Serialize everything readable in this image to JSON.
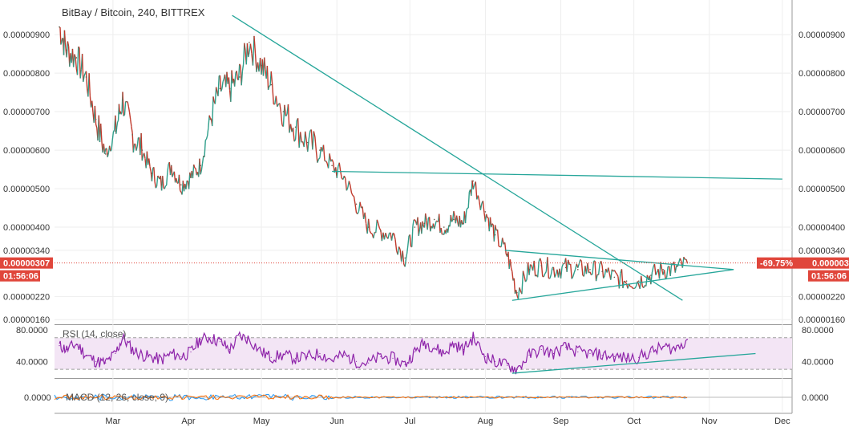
{
  "title": "BitBay / Bitcoin, 240, BITTREX",
  "colors": {
    "up": "#2e9e8a",
    "down": "#c0392b",
    "trendline": "#26a69a",
    "rsi": "#8e24aa",
    "rsi_band": "#f3e5f5",
    "price_badge": "#e0463b",
    "grid": "#eeeeee"
  },
  "chart_data": [
    {
      "type": "line",
      "name": "price",
      "title": "BitBay / Bitcoin, 240, BITTREX",
      "ylim": [
        1.5e-06,
        9.9e-06
      ],
      "y_ticks": [
        "0.00000900",
        "0.00000800",
        "0.00000700",
        "0.00000600",
        "0.00000500",
        "0.00000400",
        "0.00000340",
        "0.00000220",
        "0.00000160"
      ],
      "x_ticks": [
        "Mar",
        "Apr",
        "May",
        "Jun",
        "Jul",
        "Aug",
        "Sep",
        "Oct",
        "Nov",
        "Dec"
      ],
      "x": [
        "Feb 7",
        "Feb 10",
        "Feb 14",
        "Feb 18",
        "Feb 22",
        "Feb 26",
        "Mar 2",
        "Mar 5",
        "Mar 9",
        "Mar 13",
        "Mar 17",
        "Mar 21",
        "Mar 25",
        "Mar 29",
        "Apr 2",
        "Apr 6",
        "Apr 10",
        "Apr 14",
        "Apr 18",
        "Apr 22",
        "Apr 26",
        "May 1",
        "May 5",
        "May 10",
        "May 15",
        "May 20",
        "May 25",
        "May 30",
        "Jun 4",
        "Jun 9",
        "Jun 14",
        "Jun 19",
        "Jun 24",
        "Jun 29",
        "Jul 3",
        "Jul 7",
        "Jul 11",
        "Jul 15",
        "Jul 19",
        "Jul 23",
        "Jul 27",
        "Aug 1",
        "Aug 5",
        "Aug 10",
        "Aug 14",
        "Aug 19",
        "Aug 24",
        "Aug 29",
        "Sep 3",
        "Sep 8",
        "Sep 13",
        "Sep 18",
        "Sep 23",
        "Sep 28",
        "Oct 3",
        "Oct 8",
        "Oct 13",
        "Oct 18",
        "Oct 23"
      ],
      "values": [
        9.2e-06,
        8.6e-06,
        8.4e-06,
        7.9e-06,
        6.8e-06,
        5.9e-06,
        6.5e-06,
        7.3e-06,
        6.4e-06,
        6e-06,
        5.4e-06,
        5.1e-06,
        5.6e-06,
        5.1e-06,
        5.3e-06,
        5.6e-06,
        6.8e-06,
        7.6e-06,
        7.6e-06,
        7.9e-06,
        8.8e-06,
        8.2e-06,
        7.7e-06,
        7e-06,
        6.6e-06,
        6.2e-06,
        6e-06,
        5.6e-06,
        5.3e-06,
        4.6e-06,
        4e-06,
        3.9e-06,
        3.8e-06,
        3.2e-06,
        4e-06,
        4.1e-06,
        4.2e-06,
        4e-06,
        4.2e-06,
        4.1e-06,
        5.2e-06,
        4.4e-06,
        3.8e-06,
        3.3e-06,
        2.3e-06,
        2.9e-06,
        3e-06,
        2.9e-06,
        2.95e-06,
        2.9e-06,
        2.9e-06,
        2.85e-06,
        2.7e-06,
        2.6e-06,
        2.6e-06,
        2.75e-06,
        2.9e-06,
        2.9e-06,
        3.07e-06
      ],
      "current": {
        "value": "0.00000307",
        "change": "-69.75%",
        "countdown": "01:56:06"
      },
      "trendlines": [
        {
          "from": [
            "Apr 19",
            9.5e-06
          ],
          "to": [
            "Oct 21",
            2.1e-06
          ]
        },
        {
          "from": [
            "May 30",
            5.45e-06
          ],
          "to": [
            "Dec 1",
            5.25e-06
          ]
        },
        {
          "from": [
            "Aug 9",
            3.4e-06
          ],
          "to": [
            "Nov 11",
            2.9e-06
          ]
        },
        {
          "from": [
            "Aug 12",
            2.1e-06
          ],
          "to": [
            "Nov 11",
            2.9e-06
          ]
        }
      ]
    },
    {
      "type": "line",
      "name": "rsi",
      "legend": "RSI (14, close)",
      "ylim": [
        20,
        85
      ],
      "bands": [
        30,
        70
      ],
      "y_ticks": [
        "80.0000",
        "40.0000"
      ],
      "x": [
        "Feb 7",
        "Feb 10",
        "Feb 14",
        "Feb 18",
        "Feb 22",
        "Feb 26",
        "Mar 2",
        "Mar 5",
        "Mar 9",
        "Mar 13",
        "Mar 17",
        "Mar 21",
        "Mar 25",
        "Mar 29",
        "Apr 2",
        "Apr 6",
        "Apr 10",
        "Apr 14",
        "Apr 18",
        "Apr 22",
        "Apr 26",
        "May 1",
        "May 5",
        "May 10",
        "May 15",
        "May 20",
        "May 25",
        "May 30",
        "Jun 4",
        "Jun 9",
        "Jun 14",
        "Jun 19",
        "Jun 24",
        "Jun 29",
        "Jul 3",
        "Jul 7",
        "Jul 11",
        "Jul 15",
        "Jul 19",
        "Jul 23",
        "Jul 27",
        "Aug 1",
        "Aug 5",
        "Aug 10",
        "Aug 14",
        "Aug 19",
        "Aug 24",
        "Aug 29",
        "Sep 3",
        "Sep 8",
        "Sep 13",
        "Sep 18",
        "Sep 23",
        "Sep 28",
        "Oct 3",
        "Oct 8",
        "Oct 13",
        "Oct 18",
        "Oct 23"
      ],
      "values": [
        60,
        55,
        62,
        48,
        40,
        38,
        50,
        70,
        55,
        48,
        45,
        42,
        50,
        46,
        52,
        68,
        70,
        65,
        55,
        72,
        68,
        52,
        45,
        48,
        44,
        46,
        50,
        42,
        48,
        40,
        38,
        46,
        44,
        36,
        52,
        64,
        58,
        50,
        62,
        55,
        70,
        46,
        40,
        35,
        30,
        48,
        55,
        50,
        58,
        52,
        50,
        48,
        46,
        44,
        45,
        52,
        58,
        56,
        68
      ],
      "trendline": {
        "from": [
          "Aug 12",
          25
        ],
        "to": [
          "Nov 20",
          50
        ]
      }
    },
    {
      "type": "line",
      "name": "macd",
      "legend": "MACD (12, 26, close, 9)",
      "y_ticks": [
        "0.0000"
      ]
    }
  ]
}
